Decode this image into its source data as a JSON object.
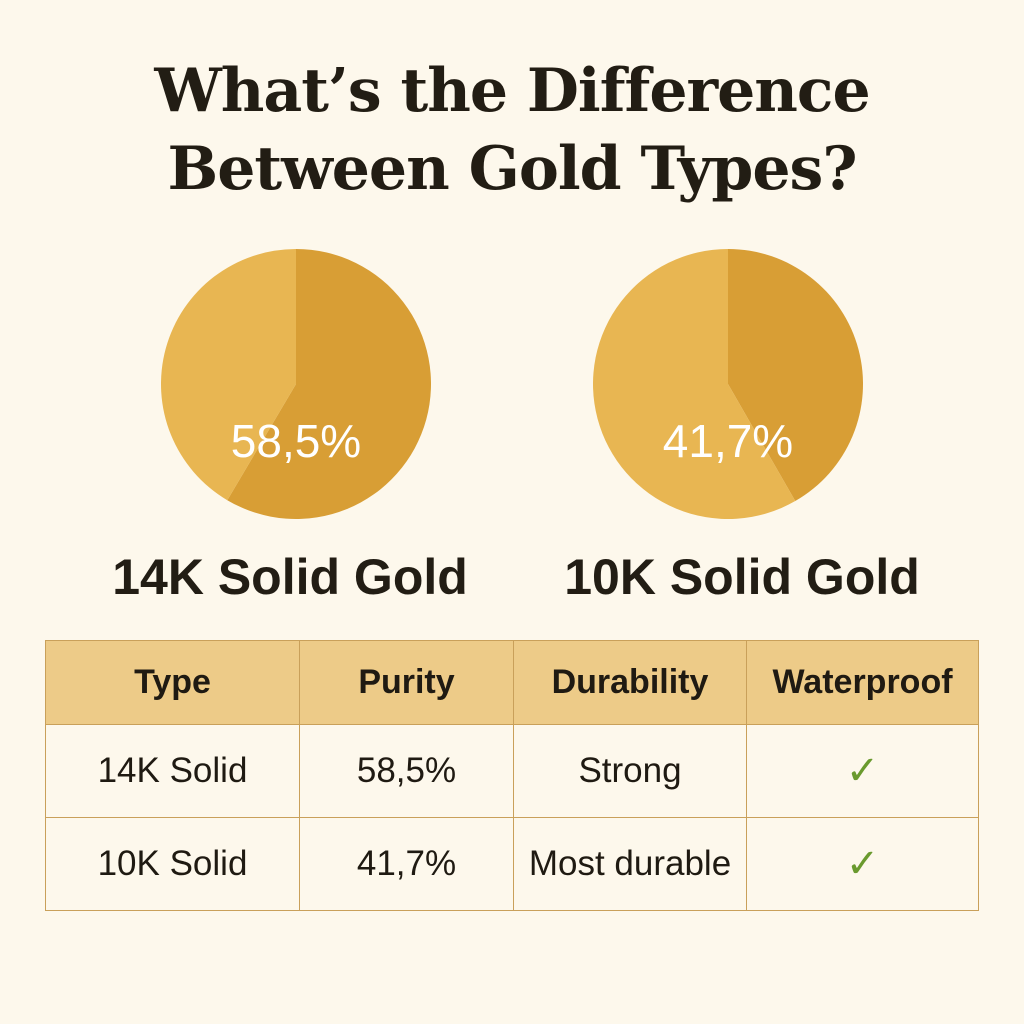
{
  "title_lines": [
    "What’s the Difference",
    "Between Gold Types?"
  ],
  "colors": {
    "gold_slice": "#D89E35",
    "other_slice": "#E8B652",
    "background": "#FDF8EC",
    "table_header": "#EDCB88",
    "check": "#6A9A2E"
  },
  "chart_data": [
    {
      "type": "pie",
      "label": "14K Solid Gold",
      "value_label": "58,5%",
      "values": [
        58.5,
        41.5
      ]
    },
    {
      "type": "pie",
      "label": "10K Solid Gold",
      "value_label": "41,7%",
      "values": [
        41.7,
        58.3
      ]
    }
  ],
  "table": {
    "headers": [
      "Type",
      "Purity",
      "Durability",
      "Waterproof"
    ],
    "rows": [
      {
        "type": "14K Solid",
        "purity": "58,5%",
        "durability": "Strong",
        "waterproof": "✓"
      },
      {
        "type": "10K Solid",
        "purity": "41,7%",
        "durability": "Most durable",
        "waterproof": "✓"
      }
    ]
  }
}
